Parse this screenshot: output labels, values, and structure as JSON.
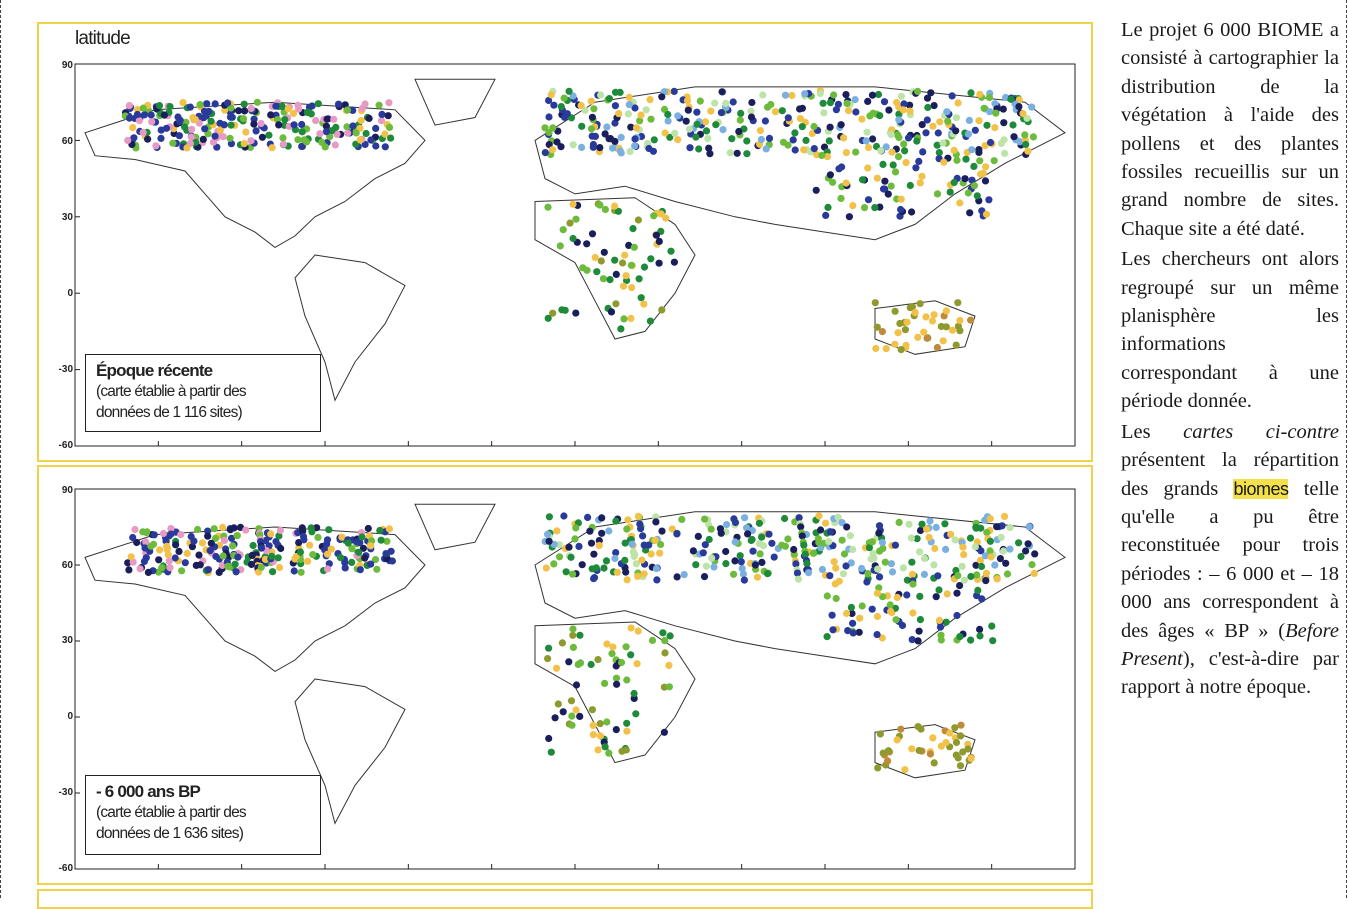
{
  "axis_label": "latitude",
  "ticks": [
    "90",
    "60",
    "30",
    "0",
    "-30",
    "-60"
  ],
  "maps": [
    {
      "title": "Époque récente",
      "subtitle_line1": "(carte établie à partir des",
      "subtitle_line2": "données de 1 116 sites)"
    },
    {
      "title": "- 6 000 ans BP",
      "subtitle_line1": "(carte établie à partir des",
      "subtitle_line2": "données de 1 636 sites)"
    }
  ],
  "sidebar": {
    "p1": "Le projet 6 000 BIOME a consisté à cartographier la distribution de la végétation à l'aide des pollens et des plantes fossiles recueillis sur un grand nombre de sites. Chaque site a été daté.",
    "p2": "Les chercheurs ont alors regroupé sur un même planisphère les informations correspondant à une période donnée.",
    "p3_before_italic": "Les ",
    "p3_italic": "cartes ci-contre",
    "p3_after_italic": " présentent la répartition des grands ",
    "p3_highlight": "biomes",
    "p3_after_highlight": " telle qu'elle a pu être reconstituée pour trois périodes : – 6 000 et – 18 000 ans correspondent à des âges « BP » (",
    "p3_italic2": "Before Present",
    "p3_end": "), c'est-à-dire par rapport à notre époque."
  },
  "colors": {
    "panel_border": "#f2d24a",
    "highlight": "#f4e04a",
    "biome_palette": [
      "#2a3a9a",
      "#1a1f5c",
      "#6dbb3c",
      "#bde3a8",
      "#f2c14a",
      "#e79ac4",
      "#1f8a3a",
      "#8f9a2e",
      "#7ab0e0",
      "#6b2a1a",
      "#c08a3a",
      "#d978c0"
    ]
  }
}
